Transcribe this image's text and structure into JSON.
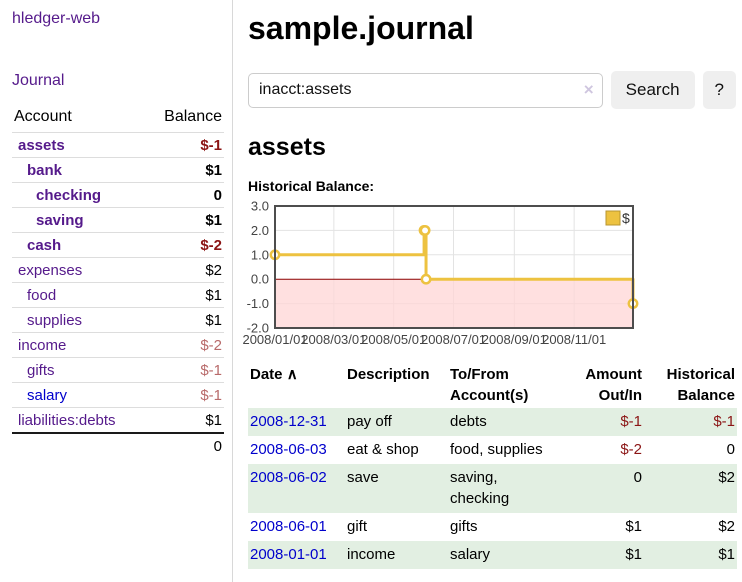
{
  "colors": {
    "link_visited": "#551a8b",
    "link_unvisited": "#0000cc",
    "negative_bold": "#8b1414",
    "negative_soft": "#b86a6a",
    "register_negative": "#8b1515",
    "row_green": "#e2efe2",
    "series_gold": "#edc240",
    "zero_line": "#8b0000",
    "negative_region": "#ffd6d6",
    "plot_border": "#4d4d4d",
    "grid": "#e3e3e3"
  },
  "sidebar": {
    "brand": "hledger-web",
    "journal_link": "Journal",
    "headers": {
      "account": "Account",
      "balance": "Balance"
    },
    "accounts": [
      {
        "name": "assets",
        "indent": 0,
        "balance": "$-1",
        "bold": true,
        "negative": true,
        "unvisited": false
      },
      {
        "name": "bank",
        "indent": 1,
        "balance": "$1",
        "bold": true,
        "negative": false,
        "unvisited": false
      },
      {
        "name": "checking",
        "indent": 2,
        "balance": "0",
        "bold": true,
        "negative": false,
        "unvisited": false
      },
      {
        "name": "saving",
        "indent": 2,
        "balance": "$1",
        "bold": true,
        "negative": false,
        "unvisited": false
      },
      {
        "name": "cash",
        "indent": 1,
        "balance": "$-2",
        "bold": true,
        "negative": true,
        "unvisited": false
      },
      {
        "name": "expenses",
        "indent": 0,
        "balance": "$2",
        "bold": false,
        "negative": false,
        "unvisited": false
      },
      {
        "name": "food",
        "indent": 1,
        "balance": "$1",
        "bold": false,
        "negative": false,
        "unvisited": false
      },
      {
        "name": "supplies",
        "indent": 1,
        "balance": "$1",
        "bold": false,
        "negative": false,
        "unvisited": false
      },
      {
        "name": "income",
        "indent": 0,
        "balance": "$-2",
        "bold": false,
        "negative": true,
        "unvisited": false
      },
      {
        "name": "gifts",
        "indent": 1,
        "balance": "$-1",
        "bold": false,
        "negative": true,
        "unvisited": false
      },
      {
        "name": "salary",
        "indent": 1,
        "balance": "$-1",
        "bold": false,
        "negative": true,
        "unvisited": true
      },
      {
        "name": "liabilities:debts",
        "indent": 0,
        "balance": "$1",
        "bold": false,
        "negative": false,
        "unvisited": false
      }
    ],
    "total": "0"
  },
  "header": {
    "title": "sample.journal"
  },
  "search": {
    "value": "inacct:assets",
    "clear_icon": "×",
    "button_label": "Search",
    "help_label": "?"
  },
  "account_page": {
    "title": "assets",
    "chart_label": "Historical Balance:"
  },
  "chart_data": {
    "type": "line",
    "step": true,
    "title": "Historical Balance",
    "series": [
      {
        "name": "$",
        "color": "#edc240",
        "points": [
          {
            "date": "2008-01-01",
            "value": 1
          },
          {
            "date": "2008-06-01",
            "value": 2
          },
          {
            "date": "2008-06-02",
            "value": 2
          },
          {
            "date": "2008-06-03",
            "value": 0
          },
          {
            "date": "2008-12-31",
            "value": -1
          }
        ]
      }
    ],
    "x_range": [
      "2008-01-01",
      "2008-12-31"
    ],
    "x_ticks": [
      "2008/01/01",
      "2008/03/01",
      "2008/05/01",
      "2008/07/01",
      "2008/09/01",
      "2008/11/01"
    ],
    "y_ticks": [
      3.0,
      2.0,
      1.0,
      0.0,
      -1.0,
      -2.0
    ],
    "y_tick_labels": [
      "3.0",
      "2.0",
      "1.0",
      "0.0",
      "-1.0",
      "-2.0"
    ],
    "ylim": [
      -2,
      3
    ],
    "grid": true,
    "legend": {
      "label": "$",
      "position": "top-right"
    }
  },
  "register": {
    "headers": {
      "date": "Date",
      "sort_indicator": "∧",
      "description": "Description",
      "tofrom_line1": "To/From",
      "tofrom_line2": "Account(s)",
      "amount_line1": "Amount",
      "amount_line2": "Out/In",
      "balance_line1": "Historical",
      "balance_line2": "Balance"
    },
    "rows": [
      {
        "date": "2008-12-31",
        "description": "pay off",
        "accounts": "debts",
        "amount": "$-1",
        "amount_negative": true,
        "balance": "$-1",
        "balance_negative": true
      },
      {
        "date": "2008-06-03",
        "description": "eat & shop",
        "accounts": "food, supplies",
        "amount": "$-2",
        "amount_negative": true,
        "balance": "0",
        "balance_negative": false
      },
      {
        "date": "2008-06-02",
        "description": "save",
        "accounts": "saving, checking",
        "amount": "0",
        "amount_negative": false,
        "balance": "$2",
        "balance_negative": false
      },
      {
        "date": "2008-06-01",
        "description": "gift",
        "accounts": "gifts",
        "amount": "$1",
        "amount_negative": false,
        "balance": "$2",
        "balance_negative": false
      },
      {
        "date": "2008-01-01",
        "description": "income",
        "accounts": "salary",
        "amount": "$1",
        "amount_negative": false,
        "balance": "$1",
        "balance_negative": false
      }
    ]
  }
}
